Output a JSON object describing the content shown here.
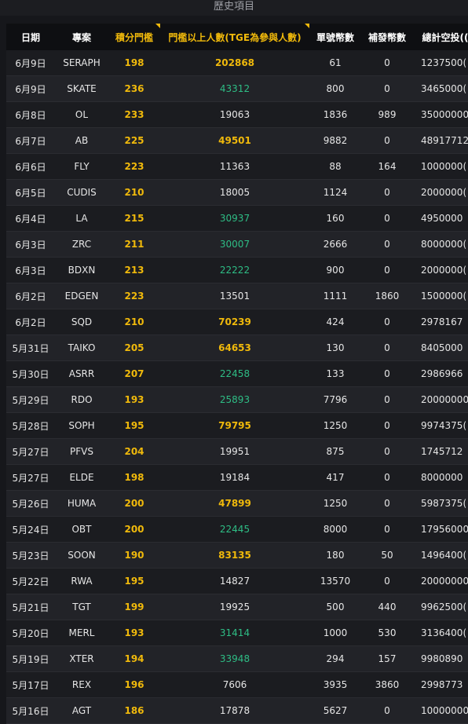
{
  "title": "歷史項目",
  "columns": [
    "日期",
    "專案",
    "積分門檻",
    "門檻以上人數(TGE為參與人數)",
    "單號幣數",
    "補發幣數",
    "總計空投(("
  ],
  "rows": [
    {
      "date": "6月9日",
      "project": "SERAPH",
      "threshold": "198",
      "count": "202868",
      "count_color": "gold",
      "per": "61",
      "extra": "0",
      "total": "1237500("
    },
    {
      "date": "6月9日",
      "project": "SKATE",
      "threshold": "236",
      "count": "43312",
      "count_color": "green",
      "per": "800",
      "extra": "0",
      "total": "3465000("
    },
    {
      "date": "6月8日",
      "project": "OL",
      "threshold": "233",
      "count": "19063",
      "count_color": "white",
      "per": "1836",
      "extra": "989",
      "total": "35000000"
    },
    {
      "date": "6月7日",
      "project": "AB",
      "threshold": "225",
      "count": "49501",
      "count_color": "gold",
      "per": "9882",
      "extra": "0",
      "total": "48917712"
    },
    {
      "date": "6月6日",
      "project": "FLY",
      "threshold": "223",
      "count": "11363",
      "count_color": "white",
      "per": "88",
      "extra": "164",
      "total": "1000000("
    },
    {
      "date": "6月5日",
      "project": "CUDIS",
      "threshold": "210",
      "count": "18005",
      "count_color": "white",
      "per": "1124",
      "extra": "0",
      "total": "2000000("
    },
    {
      "date": "6月4日",
      "project": "LA",
      "threshold": "215",
      "count": "30937",
      "count_color": "green",
      "per": "160",
      "extra": "0",
      "total": "4950000"
    },
    {
      "date": "6月3日",
      "project": "ZRC",
      "threshold": "211",
      "count": "30007",
      "count_color": "green",
      "per": "2666",
      "extra": "0",
      "total": "8000000("
    },
    {
      "date": "6月3日",
      "project": "BDXN",
      "threshold": "213",
      "count": "22222",
      "count_color": "green",
      "per": "900",
      "extra": "0",
      "total": "2000000("
    },
    {
      "date": "6月2日",
      "project": "EDGEN",
      "threshold": "223",
      "count": "13501",
      "count_color": "white",
      "per": "1111",
      "extra": "1860",
      "total": "1500000("
    },
    {
      "date": "6月2日",
      "project": "SQD",
      "threshold": "210",
      "count": "70239",
      "count_color": "gold",
      "per": "424",
      "extra": "0",
      "total": "2978167"
    },
    {
      "date": "5月31日",
      "project": "TAIKO",
      "threshold": "205",
      "count": "64653",
      "count_color": "gold",
      "per": "130",
      "extra": "0",
      "total": "8405000"
    },
    {
      "date": "5月30日",
      "project": "ASRR",
      "threshold": "207",
      "count": "22458",
      "count_color": "green",
      "per": "133",
      "extra": "0",
      "total": "2986966"
    },
    {
      "date": "5月29日",
      "project": "RDO",
      "threshold": "193",
      "count": "25893",
      "count_color": "green",
      "per": "7796",
      "extra": "0",
      "total": "20000000"
    },
    {
      "date": "5月28日",
      "project": "SOPH",
      "threshold": "195",
      "count": "79795",
      "count_color": "gold",
      "per": "1250",
      "extra": "0",
      "total": "9974375("
    },
    {
      "date": "5月27日",
      "project": "PFVS",
      "threshold": "204",
      "count": "19951",
      "count_color": "white",
      "per": "875",
      "extra": "0",
      "total": "1745712"
    },
    {
      "date": "5月27日",
      "project": "ELDE",
      "threshold": "198",
      "count": "19184",
      "count_color": "white",
      "per": "417",
      "extra": "0",
      "total": "8000000"
    },
    {
      "date": "5月26日",
      "project": "HUMA",
      "threshold": "200",
      "count": "47899",
      "count_color": "gold",
      "per": "1250",
      "extra": "0",
      "total": "5987375("
    },
    {
      "date": "5月24日",
      "project": "OBT",
      "threshold": "200",
      "count": "22445",
      "count_color": "green",
      "per": "8000",
      "extra": "0",
      "total": "17956000"
    },
    {
      "date": "5月23日",
      "project": "SOON",
      "threshold": "190",
      "count": "83135",
      "count_color": "gold",
      "per": "180",
      "extra": "50",
      "total": "1496400("
    },
    {
      "date": "5月22日",
      "project": "RWA",
      "threshold": "195",
      "count": "14827",
      "count_color": "white",
      "per": "13570",
      "extra": "0",
      "total": "20000000"
    },
    {
      "date": "5月21日",
      "project": "TGT",
      "threshold": "199",
      "count": "19925",
      "count_color": "white",
      "per": "500",
      "extra": "440",
      "total": "9962500("
    },
    {
      "date": "5月20日",
      "project": "MERL",
      "threshold": "193",
      "count": "31414",
      "count_color": "green",
      "per": "1000",
      "extra": "530",
      "total": "3136400("
    },
    {
      "date": "5月19日",
      "project": "XTER",
      "threshold": "194",
      "count": "33948",
      "count_color": "green",
      "per": "294",
      "extra": "157",
      "total": "9980890"
    },
    {
      "date": "5月17日",
      "project": "REX",
      "threshold": "196",
      "count": "7606",
      "count_color": "white",
      "per": "3935",
      "extra": "3860",
      "total": "2998773"
    },
    {
      "date": "5月16日",
      "project": "AGT",
      "threshold": "186",
      "count": "17878",
      "count_color": "white",
      "per": "5627",
      "extra": "0",
      "total": "10000000"
    }
  ],
  "colors": {
    "gold": "#f0b90b",
    "green": "#2ebd85",
    "background": "#16171b"
  }
}
